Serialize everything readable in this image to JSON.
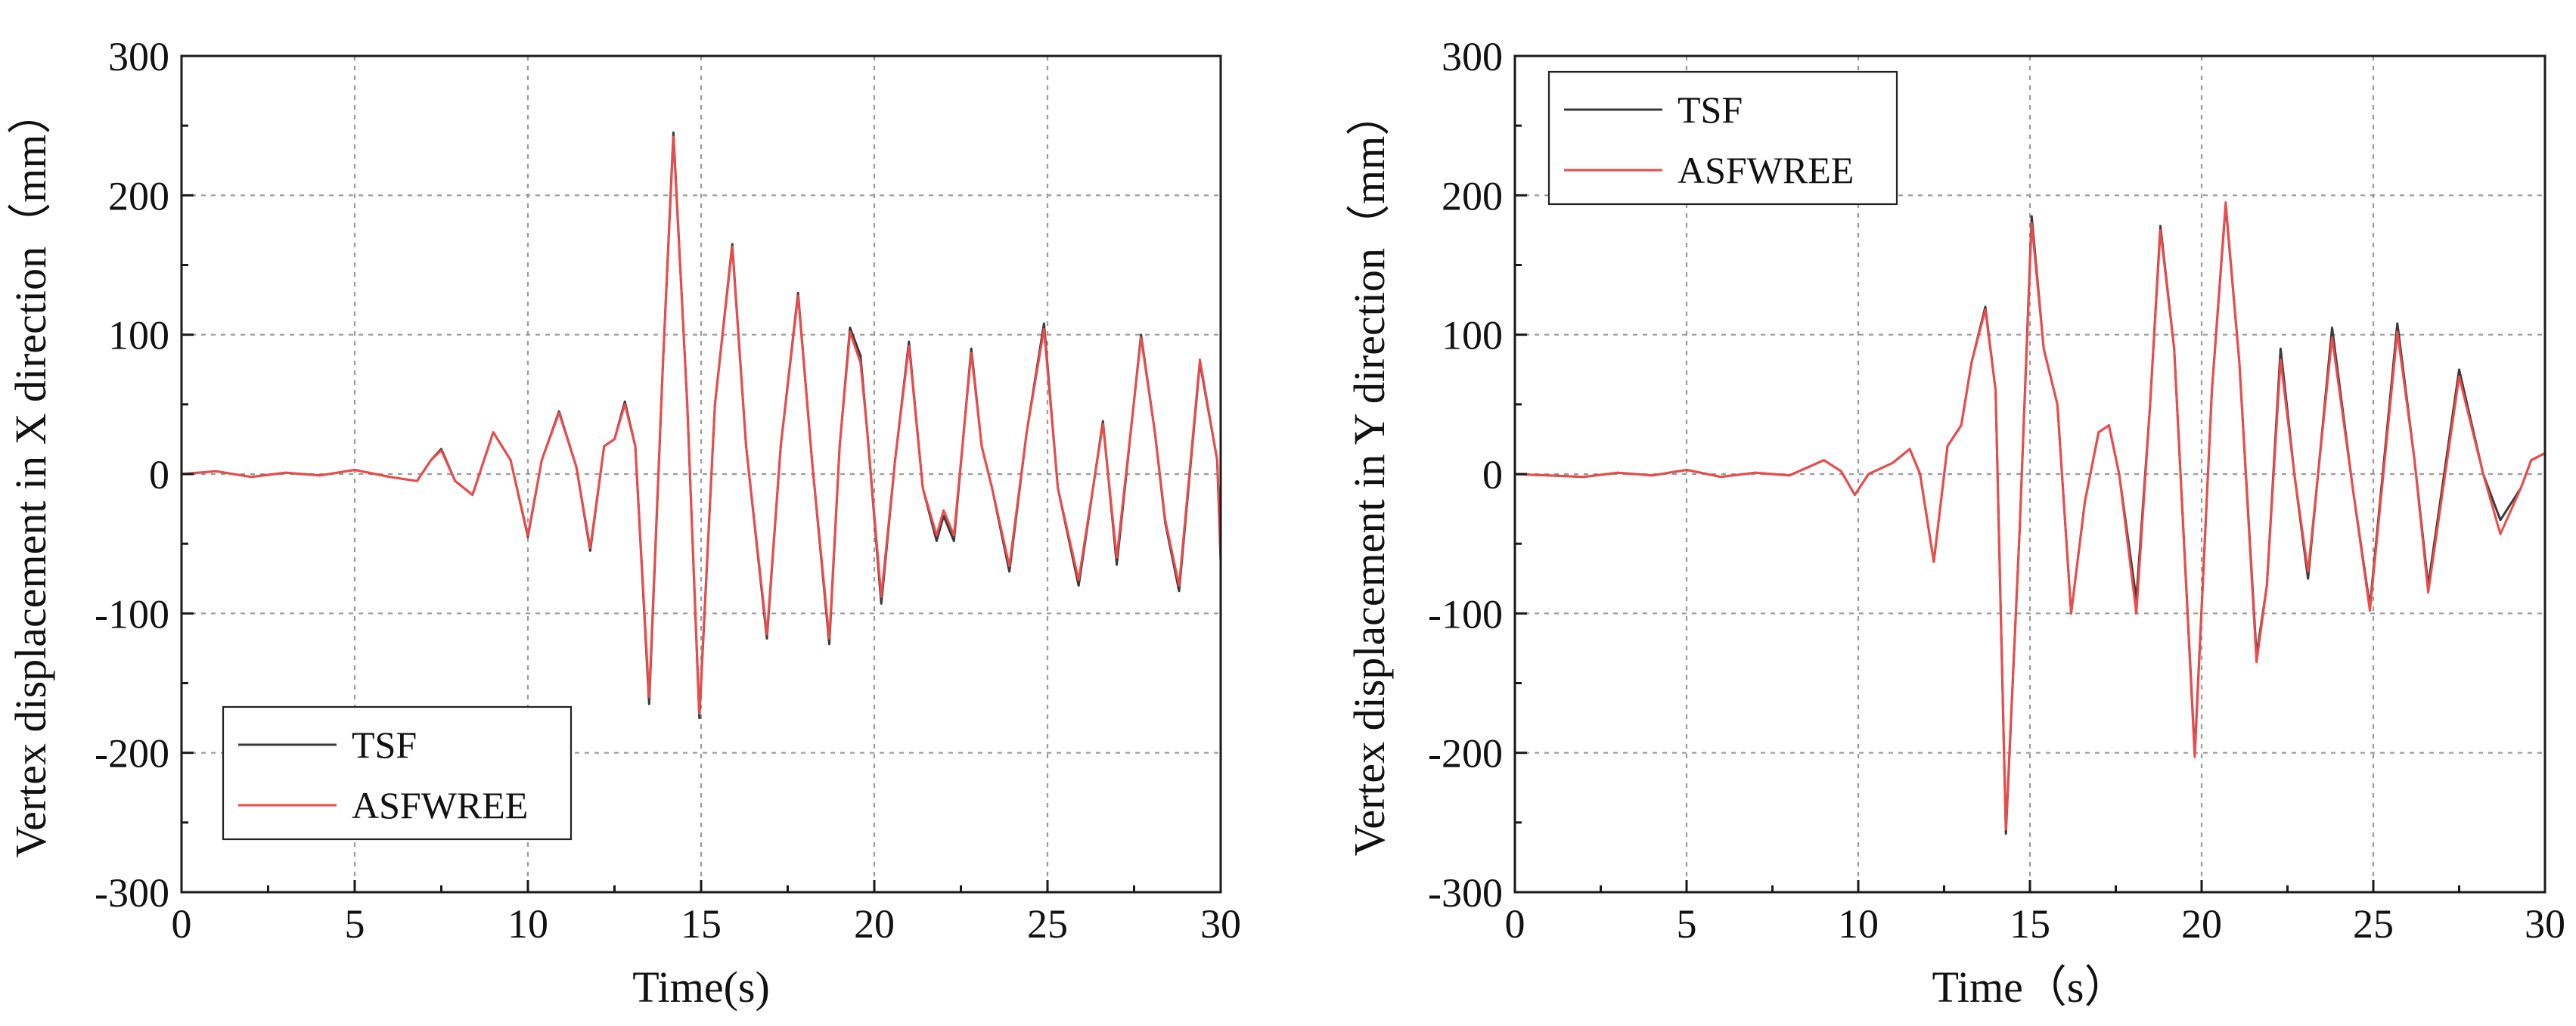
{
  "chart_data": [
    {
      "type": "line",
      "title": "",
      "xlabel": "Time(s)",
      "ylabel": "Vertex displacement in X direction（mm）",
      "xlim": [
        0,
        30
      ],
      "ylim": [
        -300,
        300
      ],
      "xticks": [
        0,
        5,
        10,
        15,
        20,
        25,
        30
      ],
      "yticks": [
        -300,
        -200,
        -100,
        0,
        100,
        200,
        300
      ],
      "grid": true,
      "legend_position": "lower-left",
      "series": [
        {
          "name": "TSF",
          "color": "#3a3a3a",
          "points": [
            [
              0,
              0
            ],
            [
              1,
              2
            ],
            [
              2,
              -2
            ],
            [
              3,
              1
            ],
            [
              4,
              -1
            ],
            [
              5,
              3
            ],
            [
              6,
              -2
            ],
            [
              6.8,
              -5
            ],
            [
              7.2,
              10
            ],
            [
              7.5,
              18
            ],
            [
              7.9,
              -5
            ],
            [
              8.4,
              -15
            ],
            [
              9,
              30
            ],
            [
              9.5,
              10
            ],
            [
              10,
              -45
            ],
            [
              10.4,
              10
            ],
            [
              10.9,
              45
            ],
            [
              11.4,
              5
            ],
            [
              11.8,
              -55
            ],
            [
              12.2,
              20
            ],
            [
              12.5,
              25
            ],
            [
              12.8,
              52
            ],
            [
              13.1,
              20
            ],
            [
              13.5,
              -165
            ],
            [
              13.9,
              80
            ],
            [
              14.2,
              245
            ],
            [
              14.6,
              50
            ],
            [
              14.95,
              -175
            ],
            [
              15.4,
              50
            ],
            [
              15.9,
              165
            ],
            [
              16.3,
              20
            ],
            [
              16.9,
              -118
            ],
            [
              17.3,
              20
            ],
            [
              17.8,
              130
            ],
            [
              18.2,
              10
            ],
            [
              18.7,
              -122
            ],
            [
              19,
              20
            ],
            [
              19.3,
              105
            ],
            [
              19.6,
              85
            ],
            [
              19.8,
              30
            ],
            [
              20.2,
              -93
            ],
            [
              20.6,
              10
            ],
            [
              21,
              95
            ],
            [
              21.4,
              -10
            ],
            [
              21.8,
              -48
            ],
            [
              22,
              -30
            ],
            [
              22.3,
              -48
            ],
            [
              22.8,
              90
            ],
            [
              23.1,
              20
            ],
            [
              23.4,
              -10
            ],
            [
              23.9,
              -70
            ],
            [
              24.4,
              30
            ],
            [
              24.9,
              108
            ],
            [
              25.3,
              -10
            ],
            [
              25.9,
              -80
            ],
            [
              26.6,
              38
            ],
            [
              27,
              -65
            ],
            [
              27.7,
              100
            ],
            [
              28.1,
              30
            ],
            [
              28.4,
              -35
            ],
            [
              28.8,
              -84
            ],
            [
              29.4,
              80
            ],
            [
              29.9,
              10
            ],
            [
              30,
              -63
            ]
          ]
        },
        {
          "name": "ASFWREE",
          "color": "#ee4a4a",
          "points": [
            [
              0,
              0
            ],
            [
              1,
              2
            ],
            [
              2,
              -2
            ],
            [
              3,
              1
            ],
            [
              4,
              -1
            ],
            [
              5,
              3
            ],
            [
              6,
              -2
            ],
            [
              6.8,
              -5
            ],
            [
              7.2,
              10
            ],
            [
              7.5,
              17
            ],
            [
              7.9,
              -5
            ],
            [
              8.4,
              -15
            ],
            [
              9,
              30
            ],
            [
              9.5,
              10
            ],
            [
              10,
              -44
            ],
            [
              10.4,
              10
            ],
            [
              10.9,
              44
            ],
            [
              11.4,
              5
            ],
            [
              11.8,
              -53
            ],
            [
              12.2,
              20
            ],
            [
              12.5,
              25
            ],
            [
              12.8,
              50
            ],
            [
              13.1,
              20
            ],
            [
              13.5,
              -160
            ],
            [
              13.9,
              80
            ],
            [
              14.2,
              242
            ],
            [
              14.6,
              50
            ],
            [
              14.95,
              -172
            ],
            [
              15.4,
              50
            ],
            [
              15.9,
              163
            ],
            [
              16.3,
              20
            ],
            [
              16.9,
              -115
            ],
            [
              17.3,
              20
            ],
            [
              17.8,
              128
            ],
            [
              18.2,
              10
            ],
            [
              18.7,
              -118
            ],
            [
              19,
              20
            ],
            [
              19.3,
              102
            ],
            [
              19.6,
              80
            ],
            [
              19.8,
              30
            ],
            [
              20.2,
              -88
            ],
            [
              20.6,
              10
            ],
            [
              21,
              92
            ],
            [
              21.4,
              -10
            ],
            [
              21.8,
              -44
            ],
            [
              22,
              -26
            ],
            [
              22.3,
              -44
            ],
            [
              22.8,
              87
            ],
            [
              23.1,
              20
            ],
            [
              23.4,
              -10
            ],
            [
              23.9,
              -66
            ],
            [
              24.4,
              30
            ],
            [
              24.9,
              104
            ],
            [
              25.3,
              -10
            ],
            [
              25.9,
              -76
            ],
            [
              26.6,
              36
            ],
            [
              27,
              -60
            ],
            [
              27.7,
              98
            ],
            [
              28.1,
              30
            ],
            [
              28.4,
              -33
            ],
            [
              28.8,
              -80
            ],
            [
              29.4,
              82
            ],
            [
              29.9,
              10
            ],
            [
              30,
              -58
            ]
          ]
        }
      ]
    },
    {
      "type": "line",
      "title": "",
      "xlabel": "Time（s）",
      "ylabel": "Vertex displacement in Y direction（mm）",
      "xlim": [
        0,
        30
      ],
      "ylim": [
        -300,
        300
      ],
      "xticks": [
        0,
        5,
        10,
        15,
        20,
        25,
        30
      ],
      "yticks": [
        -300,
        -200,
        -100,
        0,
        100,
        200,
        300
      ],
      "grid": true,
      "legend_position": "top-left",
      "series": [
        {
          "name": "TSF",
          "color": "#3a3a3a",
          "points": [
            [
              0,
              0
            ],
            [
              2,
              -2
            ],
            [
              3,
              1
            ],
            [
              4,
              -1
            ],
            [
              5,
              3
            ],
            [
              6,
              -2
            ],
            [
              7,
              1
            ],
            [
              8,
              -1
            ],
            [
              9,
              10
            ],
            [
              9.5,
              2
            ],
            [
              9.9,
              -15
            ],
            [
              10.3,
              0
            ],
            [
              11,
              8
            ],
            [
              11.5,
              18
            ],
            [
              11.8,
              0
            ],
            [
              12.2,
              -63
            ],
            [
              12.6,
              20
            ],
            [
              13,
              35
            ],
            [
              13.3,
              80
            ],
            [
              13.7,
              120
            ],
            [
              14,
              60
            ],
            [
              14.3,
              -258
            ],
            [
              14.7,
              -40
            ],
            [
              15.05,
              185
            ],
            [
              15.4,
              90
            ],
            [
              15.8,
              50
            ],
            [
              16.2,
              -100
            ],
            [
              16.6,
              -20
            ],
            [
              17,
              30
            ],
            [
              17.3,
              35
            ],
            [
              17.6,
              0
            ],
            [
              18.1,
              -90
            ],
            [
              18.5,
              50
            ],
            [
              18.8,
              178
            ],
            [
              19.2,
              90
            ],
            [
              19.8,
              -200
            ],
            [
              20.3,
              60
            ],
            [
              20.7,
              193
            ],
            [
              21.1,
              80
            ],
            [
              21.6,
              -130
            ],
            [
              21.9,
              -80
            ],
            [
              22.3,
              90
            ],
            [
              22.7,
              0
            ],
            [
              23.1,
              -75
            ],
            [
              23.8,
              105
            ],
            [
              24.4,
              -10
            ],
            [
              24.9,
              -95
            ],
            [
              25.7,
              108
            ],
            [
              26.2,
              10
            ],
            [
              26.6,
              -80
            ],
            [
              27.5,
              75
            ],
            [
              28.2,
              0
            ],
            [
              28.7,
              -33
            ],
            [
              29.3,
              -10
            ],
            [
              29.6,
              10
            ],
            [
              30,
              15
            ]
          ]
        },
        {
          "name": "ASFWREE",
          "color": "#ee4a4a",
          "points": [
            [
              0,
              0
            ],
            [
              2,
              -2
            ],
            [
              3,
              1
            ],
            [
              4,
              -1
            ],
            [
              5,
              3
            ],
            [
              6,
              -2
            ],
            [
              7,
              1
            ],
            [
              8,
              -1
            ],
            [
              9,
              10
            ],
            [
              9.5,
              2
            ],
            [
              9.9,
              -15
            ],
            [
              10.3,
              0
            ],
            [
              11,
              8
            ],
            [
              11.5,
              18
            ],
            [
              11.8,
              0
            ],
            [
              12.2,
              -63
            ],
            [
              12.6,
              20
            ],
            [
              13,
              35
            ],
            [
              13.3,
              80
            ],
            [
              13.7,
              118
            ],
            [
              14,
              60
            ],
            [
              14.3,
              -255
            ],
            [
              14.7,
              -40
            ],
            [
              15.05,
              180
            ],
            [
              15.4,
              90
            ],
            [
              15.8,
              50
            ],
            [
              16.2,
              -100
            ],
            [
              16.6,
              -20
            ],
            [
              17,
              30
            ],
            [
              17.3,
              35
            ],
            [
              17.6,
              0
            ],
            [
              18.1,
              -100
            ],
            [
              18.5,
              50
            ],
            [
              18.8,
              175
            ],
            [
              19.2,
              90
            ],
            [
              19.8,
              -203
            ],
            [
              20.3,
              60
            ],
            [
              20.7,
              195
            ],
            [
              21.1,
              80
            ],
            [
              21.6,
              -135
            ],
            [
              21.9,
              -80
            ],
            [
              22.3,
              82
            ],
            [
              22.7,
              0
            ],
            [
              23.1,
              -70
            ],
            [
              23.8,
              98
            ],
            [
              24.4,
              -10
            ],
            [
              24.9,
              -98
            ],
            [
              25.7,
              102
            ],
            [
              26.2,
              10
            ],
            [
              26.6,
              -85
            ],
            [
              27.5,
              70
            ],
            [
              28.2,
              0
            ],
            [
              28.7,
              -43
            ],
            [
              29.3,
              -10
            ],
            [
              29.6,
              10
            ],
            [
              30,
              15
            ]
          ]
        }
      ]
    }
  ]
}
